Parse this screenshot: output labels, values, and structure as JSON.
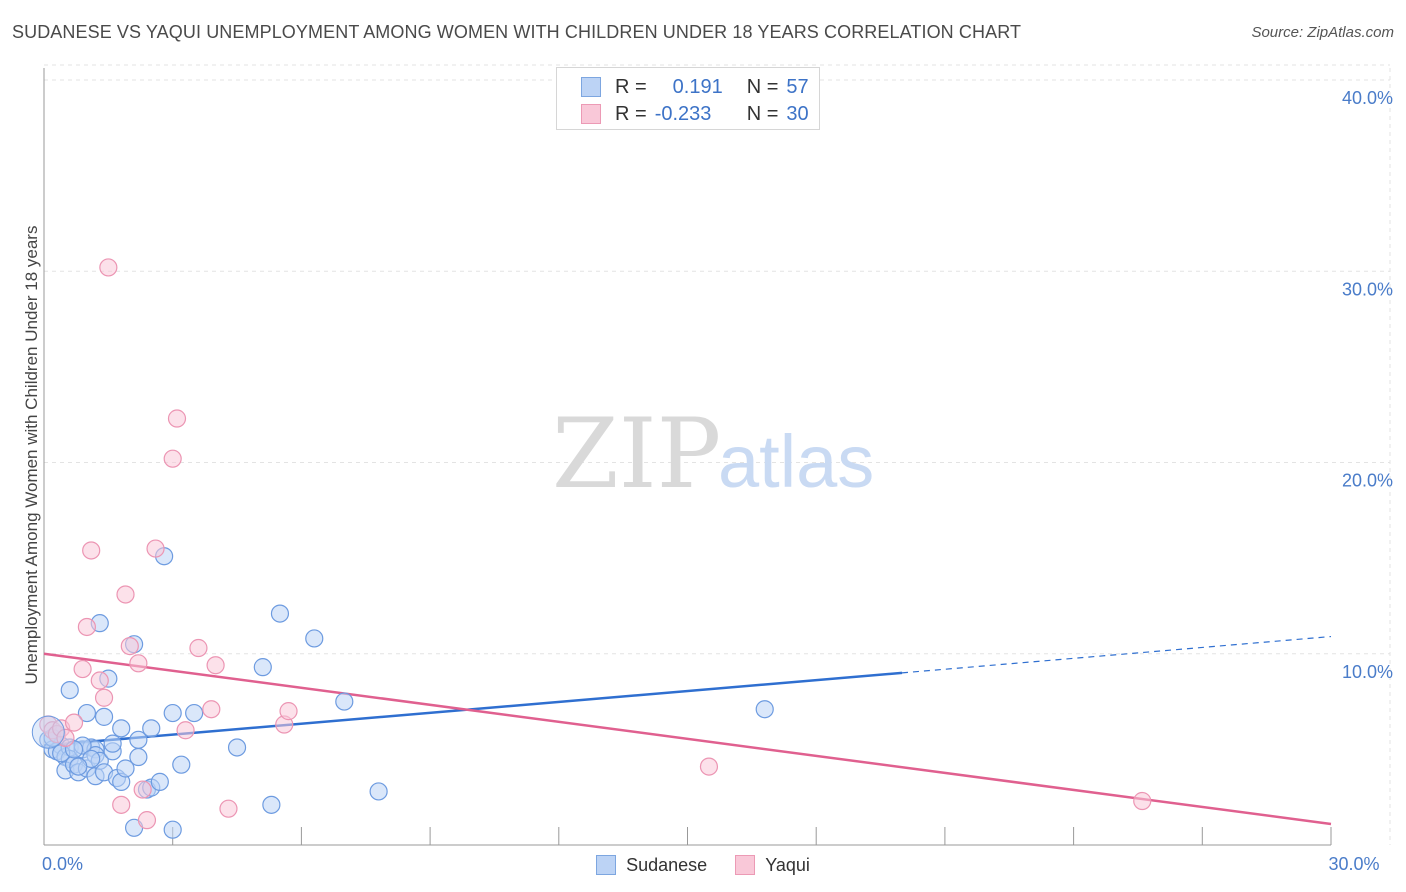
{
  "title": "SUDANESE VS YAQUI UNEMPLOYMENT AMONG WOMEN WITH CHILDREN UNDER 18 YEARS CORRELATION CHART",
  "source": "Source: ZipAtlas.com",
  "watermark": {
    "zip": "ZIP",
    "atlas": "atlas"
  },
  "legend": {
    "rows": [
      {
        "r_label": "R =",
        "r_value": "0.191",
        "n_label": "N =",
        "n_value": "57"
      },
      {
        "r_label": "R =",
        "r_value": "-0.233",
        "n_label": "N =",
        "n_value": "30"
      }
    ]
  },
  "colors": {
    "sudanese_fill": "#bcd3f5",
    "sudanese_stroke": "#6d9be0",
    "sudanese_line": "#2f6fd0",
    "yaqui_fill": "#f9c8d8",
    "yaqui_stroke": "#ec95b3",
    "yaqui_line": "#e0608f",
    "tick_text": "#4a7cc9",
    "grid": "#e3e3e3"
  },
  "chart_data": {
    "type": "scatter",
    "title": "SUDANESE VS YAQUI UNEMPLOYMENT AMONG WOMEN WITH CHILDREN UNDER 18 YEARS CORRELATION CHART",
    "xlabel": "",
    "ylabel": "Unemployment Among Women with Children Under 18 years",
    "xlim": [
      0,
      30
    ],
    "ylim": [
      0,
      42
    ],
    "x_tick_labels": [
      {
        "value": 0,
        "label": "0.0%"
      },
      {
        "value": 30,
        "label": "30.0%"
      }
    ],
    "y_tick_labels": [
      {
        "value": 10,
        "label": "10.0%"
      },
      {
        "value": 20,
        "label": "20.0%"
      },
      {
        "value": 30,
        "label": "30.0%"
      },
      {
        "value": 40,
        "label": "40.0%"
      }
    ],
    "x_minor_ticks": [
      3,
      6,
      9,
      12,
      15,
      18,
      21,
      24,
      27,
      30
    ],
    "series": [
      {
        "name": "Sudanese",
        "trend": {
          "x0": 0,
          "y0": 5.2,
          "x1": 20,
          "y1": 9.0,
          "dashed_to_x": 30,
          "dashed_to_y": 10.9
        },
        "points": [
          [
            0.1,
            5.5
          ],
          [
            0.2,
            5.0
          ],
          [
            0.3,
            5.8
          ],
          [
            0.4,
            5.2
          ],
          [
            0.3,
            4.9
          ],
          [
            0.5,
            4.6
          ],
          [
            0.6,
            5.1
          ],
          [
            0.6,
            4.5
          ],
          [
            0.5,
            3.9
          ],
          [
            0.6,
            8.1
          ],
          [
            0.7,
            4.2
          ],
          [
            0.8,
            3.8
          ],
          [
            0.9,
            5.0
          ],
          [
            1.0,
            6.9
          ],
          [
            1.1,
            5.1
          ],
          [
            1.0,
            4.0
          ],
          [
            1.2,
            5.0
          ],
          [
            1.2,
            4.7
          ],
          [
            1.2,
            3.6
          ],
          [
            1.3,
            4.4
          ],
          [
            1.4,
            3.8
          ],
          [
            1.4,
            6.7
          ],
          [
            1.5,
            8.7
          ],
          [
            1.6,
            4.9
          ],
          [
            1.7,
            3.5
          ],
          [
            1.8,
            3.3
          ],
          [
            1.9,
            4.0
          ],
          [
            1.8,
            6.1
          ],
          [
            2.1,
            10.5
          ],
          [
            2.2,
            5.5
          ],
          [
            2.2,
            4.6
          ],
          [
            2.1,
            0.9
          ],
          [
            2.4,
            2.9
          ],
          [
            2.5,
            3.0
          ],
          [
            2.5,
            6.1
          ],
          [
            2.7,
            3.3
          ],
          [
            2.8,
            15.1
          ],
          [
            3.0,
            0.8
          ],
          [
            3.2,
            4.2
          ],
          [
            3.0,
            6.9
          ],
          [
            3.5,
            6.9
          ],
          [
            4.5,
            5.1
          ],
          [
            5.1,
            9.3
          ],
          [
            5.3,
            2.1
          ],
          [
            5.5,
            12.1
          ],
          [
            6.3,
            10.8
          ],
          [
            7.0,
            7.5
          ],
          [
            7.8,
            2.8
          ],
          [
            1.3,
            11.6
          ],
          [
            0.9,
            5.2
          ],
          [
            0.4,
            4.8
          ],
          [
            0.7,
            5.0
          ],
          [
            1.1,
            4.5
          ],
          [
            0.8,
            4.1
          ],
          [
            0.2,
            5.6
          ],
          [
            1.6,
            5.3
          ],
          [
            16.8,
            7.1
          ]
        ]
      },
      {
        "name": "Yaqui",
        "trend": {
          "x0": 0,
          "y0": 10.0,
          "x1": 30,
          "y1": 1.1
        },
        "points": [
          [
            0.1,
            6.3
          ],
          [
            0.2,
            6.0
          ],
          [
            0.3,
            5.8
          ],
          [
            0.4,
            6.1
          ],
          [
            0.5,
            5.6
          ],
          [
            0.7,
            6.4
          ],
          [
            0.9,
            9.2
          ],
          [
            1.0,
            11.4
          ],
          [
            1.1,
            15.4
          ],
          [
            1.3,
            8.6
          ],
          [
            1.4,
            7.7
          ],
          [
            1.5,
            30.2
          ],
          [
            1.8,
            2.1
          ],
          [
            1.9,
            13.1
          ],
          [
            2.0,
            10.4
          ],
          [
            2.2,
            9.5
          ],
          [
            2.3,
            2.9
          ],
          [
            2.4,
            1.3
          ],
          [
            2.6,
            15.5
          ],
          [
            3.0,
            20.2
          ],
          [
            3.1,
            22.3
          ],
          [
            3.3,
            6.0
          ],
          [
            3.6,
            10.3
          ],
          [
            3.9,
            7.1
          ],
          [
            4.0,
            9.4
          ],
          [
            4.3,
            1.9
          ],
          [
            5.6,
            6.3
          ],
          [
            5.7,
            7.0
          ],
          [
            15.5,
            4.1
          ],
          [
            25.6,
            2.3
          ]
        ]
      }
    ]
  },
  "bottom_legend": {
    "items": [
      "Sudanese",
      "Yaqui"
    ]
  }
}
